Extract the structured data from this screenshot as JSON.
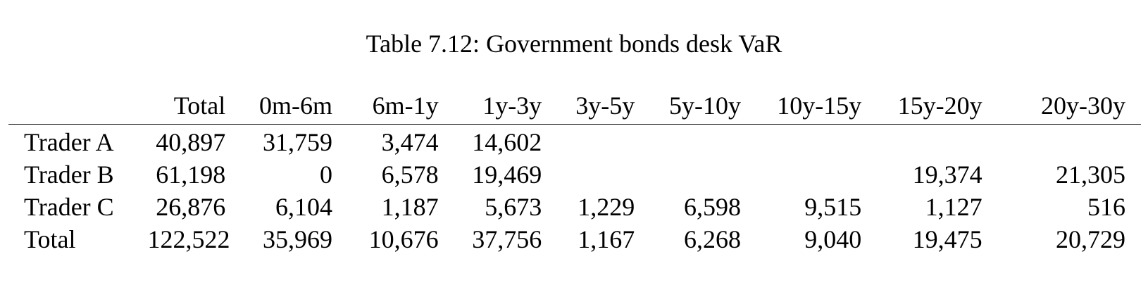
{
  "caption": "Table 7.12: Government bonds desk VaR",
  "table": {
    "columns": [
      "",
      "Total",
      "0m-6m",
      "6m-1y",
      "1y-3y",
      "3y-5y",
      "5y-10y",
      "10y-15y",
      "15y-20y",
      "20y-30y"
    ],
    "rows": [
      {
        "label": "Trader A",
        "cells": [
          "40,897",
          "31,759",
          "3,474",
          "14,602",
          "",
          "",
          "",
          "",
          ""
        ]
      },
      {
        "label": "Trader B",
        "cells": [
          "61,198",
          "0",
          "6,578",
          "19,469",
          "",
          "",
          "",
          "19,374",
          "21,305"
        ]
      },
      {
        "label": "Trader C",
        "cells": [
          "26,876",
          "6,104",
          "1,187",
          "5,673",
          "1,229",
          "6,598",
          "9,515",
          "1,127",
          "516"
        ]
      },
      {
        "label": "Total",
        "cells": [
          "122,522",
          "35,969",
          "10,676",
          "37,756",
          "1,167",
          "6,268",
          "9,040",
          "19,475",
          "20,729"
        ]
      }
    ]
  }
}
